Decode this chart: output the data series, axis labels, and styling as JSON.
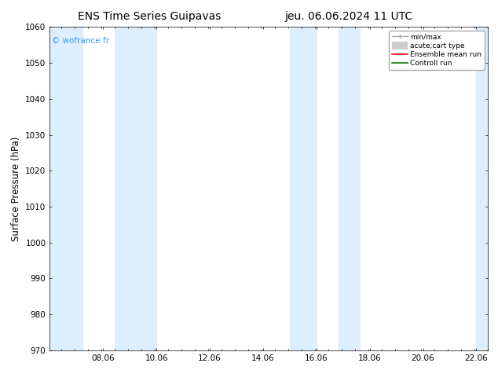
{
  "title_left": "ENS Time Series Guipavas",
  "title_right": "jeu. 06.06.2024 11 UTC",
  "ylabel": "Surface Pressure (hPa)",
  "ylim": [
    970,
    1060
  ],
  "yticks": [
    970,
    980,
    990,
    1000,
    1010,
    1020,
    1030,
    1040,
    1050,
    1060
  ],
  "xlim_start": 6.06,
  "xlim_end": 22.5,
  "xticks": [
    8.06,
    10.06,
    12.06,
    14.06,
    16.06,
    18.06,
    20.06,
    22.06
  ],
  "xticklabels": [
    "08.06",
    "10.06",
    "12.06",
    "14.06",
    "16.06",
    "18.06",
    "20.06",
    "22.06"
  ],
  "shaded_bands": [
    {
      "xmin": 6.06,
      "xmax": 7.3
    },
    {
      "xmin": 8.5,
      "xmax": 10.06
    },
    {
      "xmin": 15.06,
      "xmax": 16.06
    },
    {
      "xmin": 16.9,
      "xmax": 17.7
    },
    {
      "xmin": 22.06,
      "xmax": 22.5
    }
  ],
  "shaded_color": "#ddeeff",
  "watermark": "© wofrance.fr",
  "watermark_color": "#3399ff",
  "legend_entries": [
    {
      "label": "min/max",
      "color": "#aaaaaa",
      "lw": 1.2
    },
    {
      "label": "acute;cart type",
      "color": "#cccccc",
      "lw": 6
    },
    {
      "label": "Ensemble mean run",
      "color": "red",
      "lw": 1.5
    },
    {
      "label": "Controll run",
      "color": "green",
      "lw": 1.5
    }
  ],
  "bg_color": "#ffffff",
  "title_fontsize": 10,
  "tick_fontsize": 7.5,
  "ylabel_fontsize": 8.5
}
